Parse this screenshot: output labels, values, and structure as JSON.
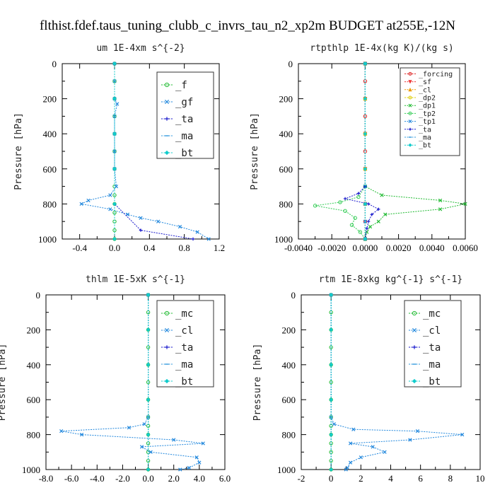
{
  "title": "flthist.fdef.taus_tuning_clubb_c_invrs_tau_n2_xp2m  BUDGET at255E,-12N",
  "chart_data": [
    {
      "type": "line",
      "title": "um  1E-4xm s^{-2}",
      "ylabel": "Pressure [hPa]",
      "xlim": [
        -0.6,
        1.2
      ],
      "ylim": [
        1000,
        0
      ],
      "xticks": [
        "-0.4",
        "0.0",
        "0.4",
        "0.8",
        "1.2"
      ],
      "xtick_values": [
        -0.4,
        0.0,
        0.4,
        0.8,
        1.2
      ],
      "yticks": [
        "0",
        "200",
        "400",
        "600",
        "800",
        "1000"
      ],
      "ytick_values": [
        0,
        200,
        400,
        600,
        800,
        1000
      ],
      "legend_position": "top-right",
      "series": [
        {
          "name": "_f",
          "color": "#22bb33",
          "marker": "circle",
          "y": [
            0,
            100,
            200,
            300,
            400,
            500,
            600,
            700,
            750,
            800,
            850,
            900,
            950,
            1000
          ],
          "x": [
            0,
            0,
            0,
            0,
            0,
            0,
            0,
            0,
            0,
            0,
            0,
            0,
            0,
            0
          ]
        },
        {
          "name": "_gf",
          "color": "#2288dd",
          "marker": "x",
          "y": [
            0,
            100,
            200,
            230,
            300,
            400,
            500,
            600,
            700,
            750,
            780,
            800,
            830,
            860,
            880,
            900,
            930,
            960,
            1000
          ],
          "x": [
            0,
            0,
            0,
            0.03,
            0,
            0,
            0,
            0,
            0.02,
            -0.05,
            -0.3,
            -0.38,
            -0.05,
            0.15,
            0.3,
            0.5,
            0.75,
            0.95,
            1.08
          ]
        },
        {
          "name": "_ta",
          "color": "#1a1acc",
          "marker": "plus",
          "y": [
            0,
            200,
            400,
            600,
            800,
            950,
            1000
          ],
          "x": [
            0,
            0,
            0,
            0,
            0,
            0.3,
            0.9
          ]
        },
        {
          "name": "_ma",
          "color": "#3399dd",
          "marker": "dash",
          "y": [
            0,
            200,
            400,
            600,
            800,
            1000
          ],
          "x": [
            0,
            0,
            0,
            0,
            0,
            0
          ]
        },
        {
          "name": "_bt",
          "color": "#11cccc",
          "marker": "diamond",
          "y": [
            0,
            200,
            400,
            600,
            800,
            1000
          ],
          "x": [
            0,
            0,
            0,
            0,
            0,
            0
          ]
        }
      ]
    },
    {
      "type": "line",
      "title": "rtpthlp  1E-4x(kg K)/(kg s)",
      "ylabel": "Pressure [hPa]",
      "xlim": [
        -0.004,
        0.006
      ],
      "ylim": [
        1000,
        0
      ],
      "xticks": [
        "-0.0040",
        "-0.0020",
        "0.0000",
        "0.0020",
        "0.0040",
        "0.0060"
      ],
      "xtick_values": [
        -0.004,
        -0.002,
        0.0,
        0.002,
        0.004,
        0.006
      ],
      "yticks": [
        "0",
        "200",
        "400",
        "600",
        "800",
        "1000"
      ],
      "ytick_values": [
        0,
        200,
        400,
        600,
        800,
        1000
      ],
      "legend_position": "top-right",
      "series": [
        {
          "name": "_forcing",
          "color": "#dd2222",
          "marker": "circle",
          "y": [
            0,
            100,
            200,
            300,
            400,
            500,
            600,
            700,
            800,
            900,
            1000
          ],
          "x": [
            0,
            0,
            0,
            0,
            0,
            0,
            0,
            0,
            0,
            0,
            0
          ]
        },
        {
          "name": "_sf",
          "color": "#ee3333",
          "marker": "triangle-down",
          "y": [
            0,
            200,
            400,
            600,
            800,
            1000
          ],
          "x": [
            0,
            0,
            0,
            0,
            0,
            0
          ]
        },
        {
          "name": "_cl",
          "color": "#ee9900",
          "marker": "triangle",
          "y": [
            0,
            200,
            400,
            600,
            800,
            1000
          ],
          "x": [
            0,
            0,
            0,
            0,
            0,
            0
          ]
        },
        {
          "name": "_dp2",
          "color": "#ddcc00",
          "marker": "circle",
          "y": [
            0,
            200,
            400,
            600,
            800,
            1000
          ],
          "x": [
            0,
            0,
            0,
            0,
            0,
            0
          ]
        },
        {
          "name": "_dp1",
          "color": "#22bb33",
          "marker": "x",
          "y": [
            0,
            700,
            750,
            780,
            800,
            830,
            860,
            900,
            930,
            960,
            1000
          ],
          "x": [
            0,
            0,
            0.001,
            0.0045,
            0.006,
            0.0045,
            0.0012,
            0.0008,
            0.0003,
            0.0001,
            0
          ]
        },
        {
          "name": "_tp2",
          "color": "#33cc55",
          "marker": "circle",
          "y": [
            0,
            700,
            760,
            790,
            810,
            840,
            880,
            920,
            960,
            1000
          ],
          "x": [
            0,
            0,
            -0.0004,
            -0.0015,
            -0.003,
            -0.0012,
            -0.0006,
            -0.0008,
            -0.0003,
            0
          ]
        },
        {
          "name": "_tp1",
          "color": "#2288dd",
          "marker": "x",
          "y": [
            0,
            700,
            800,
            900,
            1000
          ],
          "x": [
            0,
            0,
            0,
            0,
            0
          ]
        },
        {
          "name": "_ta",
          "color": "#1a1acc",
          "marker": "plus",
          "y": [
            0,
            700,
            740,
            770,
            800,
            830,
            860,
            900,
            940,
            1000
          ],
          "x": [
            0,
            0,
            -0.0004,
            -0.0012,
            0.0002,
            0.0008,
            0.0004,
            0.0002,
            0.0001,
            0
          ]
        },
        {
          "name": "_ma",
          "color": "#3399dd",
          "marker": "dash",
          "y": [
            0,
            200,
            400,
            600,
            800,
            1000
          ],
          "x": [
            0,
            0,
            0,
            0,
            0,
            0
          ]
        },
        {
          "name": "_bt",
          "color": "#11cccc",
          "marker": "diamond",
          "y": [
            0,
            200,
            400,
            600,
            800,
            1000
          ],
          "x": [
            0,
            0,
            0,
            0,
            0,
            0
          ]
        }
      ]
    },
    {
      "type": "line",
      "title": "thlm  1E-5xK s^{-1}",
      "ylabel": "Pressure [hPa]",
      "xlim": [
        -8.0,
        6.0
      ],
      "ylim": [
        1000,
        0
      ],
      "xticks": [
        "-8.0",
        "-6.0",
        "-4.0",
        "-2.0",
        "0.0",
        "2.0",
        "4.0",
        "6.0"
      ],
      "xtick_values": [
        -8,
        -6,
        -4,
        -2,
        0,
        2,
        4,
        6
      ],
      "yticks": [
        "0",
        "200",
        "400",
        "600",
        "800",
        "1000"
      ],
      "ytick_values": [
        0,
        200,
        400,
        600,
        800,
        1000
      ],
      "legend_position": "top-right",
      "series": [
        {
          "name": "_mc",
          "color": "#22bb33",
          "marker": "circle",
          "y": [
            0,
            100,
            200,
            300,
            400,
            500,
            600,
            700,
            750,
            800,
            850,
            900,
            950,
            1000
          ],
          "x": [
            0,
            0,
            0,
            0,
            0,
            0,
            0,
            0,
            0,
            0,
            0,
            0,
            0,
            0
          ]
        },
        {
          "name": "_cl",
          "color": "#2288dd",
          "marker": "x",
          "y": [
            0,
            700,
            740,
            760,
            780,
            800,
            830,
            850,
            870,
            900,
            930,
            960,
            990,
            1000
          ],
          "x": [
            0,
            0,
            -0.3,
            -1.5,
            -6.8,
            -5.2,
            2.0,
            4.3,
            -0.5,
            0.2,
            3.8,
            4.0,
            3.2,
            2.5
          ]
        },
        {
          "name": "_ta",
          "color": "#1a1acc",
          "marker": "plus",
          "y": [
            0,
            200,
            400,
            600,
            800,
            1000
          ],
          "x": [
            0,
            0,
            0,
            0,
            0,
            0
          ]
        },
        {
          "name": "_ma",
          "color": "#3399dd",
          "marker": "dash",
          "y": [
            0,
            200,
            400,
            600,
            800,
            1000
          ],
          "x": [
            0,
            0,
            0,
            0,
            0,
            0
          ]
        },
        {
          "name": "_bt",
          "color": "#11cccc",
          "marker": "diamond",
          "y": [
            0,
            200,
            400,
            600,
            800,
            1000
          ],
          "x": [
            0,
            0,
            0,
            0,
            0,
            0
          ]
        }
      ]
    },
    {
      "type": "line",
      "title": "rtm  1E-8xkg kg^{-1} s^{-1}",
      "ylabel": "Pressure [hPa]",
      "xlim": [
        -2,
        10
      ],
      "ylim": [
        1000,
        0
      ],
      "xticks": [
        "-2",
        "0",
        "2",
        "4",
        "6",
        "8",
        "10"
      ],
      "xtick_values": [
        -2,
        0,
        2,
        4,
        6,
        8,
        10
      ],
      "yticks": [
        "0",
        "200",
        "400",
        "600",
        "800",
        "1000"
      ],
      "ytick_values": [
        0,
        200,
        400,
        600,
        800,
        1000
      ],
      "legend_position": "top-right",
      "series": [
        {
          "name": "_mc",
          "color": "#22bb33",
          "marker": "circle",
          "y": [
            0,
            100,
            200,
            300,
            400,
            500,
            600,
            700,
            750,
            800,
            850,
            900,
            950,
            1000
          ],
          "x": [
            0,
            0,
            0,
            0,
            0,
            0,
            0,
            0,
            0,
            0,
            0,
            0,
            0,
            0
          ]
        },
        {
          "name": "_cl",
          "color": "#2288dd",
          "marker": "x",
          "y": [
            0,
            700,
            740,
            770,
            780,
            800,
            830,
            850,
            870,
            900,
            930,
            960,
            990,
            1000
          ],
          "x": [
            0,
            0,
            0.2,
            1.5,
            5.8,
            8.8,
            5.3,
            1.3,
            2.8,
            3.6,
            2.0,
            1.3,
            1.1,
            1.0
          ]
        },
        {
          "name": "_ta",
          "color": "#1a1acc",
          "marker": "plus",
          "y": [
            0,
            200,
            400,
            600,
            800,
            1000
          ],
          "x": [
            0,
            0,
            0,
            0,
            0,
            0
          ]
        },
        {
          "name": "_ma",
          "color": "#3399dd",
          "marker": "dash",
          "y": [
            0,
            200,
            400,
            600,
            800,
            1000
          ],
          "x": [
            0,
            0,
            0,
            0,
            0,
            0
          ]
        },
        {
          "name": "_bt",
          "color": "#11cccc",
          "marker": "diamond",
          "y": [
            0,
            200,
            400,
            600,
            800,
            1000
          ],
          "x": [
            0,
            0,
            0,
            0,
            0,
            0
          ]
        }
      ]
    }
  ]
}
